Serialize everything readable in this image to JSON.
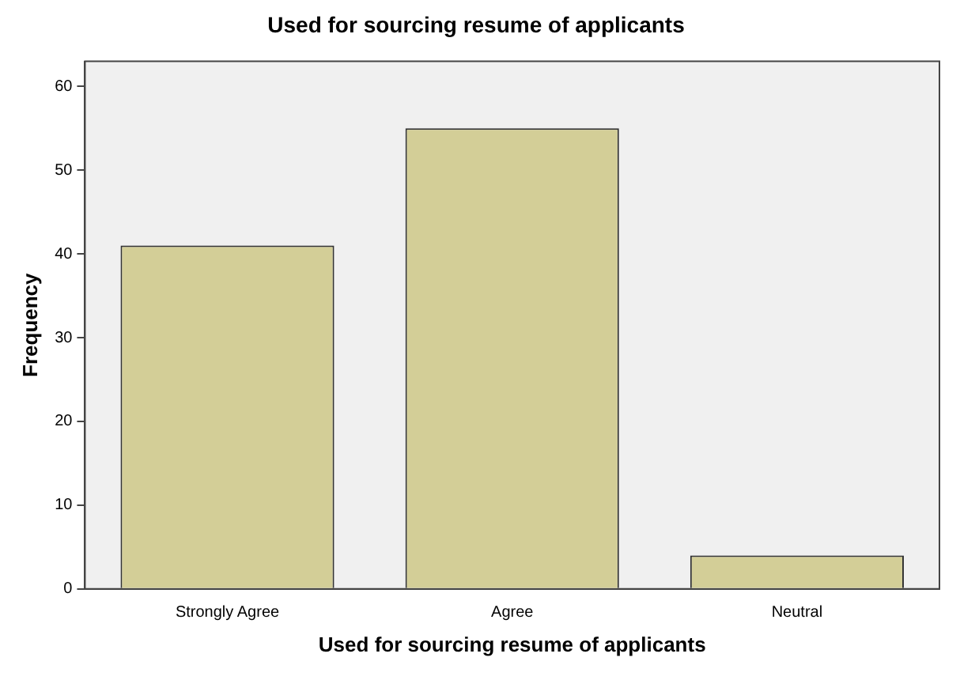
{
  "chart_data": {
    "type": "bar",
    "title": "Used for sourcing resume of applicants",
    "xlabel": "Used for sourcing resume of applicants",
    "ylabel": "Frequency",
    "categories": [
      "Strongly Agree",
      "Agree",
      "Neutral"
    ],
    "values": [
      41,
      55,
      4
    ],
    "color": "#d3ce97",
    "ylim": [
      0,
      63
    ],
    "yticks": [
      0,
      10,
      20,
      30,
      40,
      50,
      60
    ],
    "grid": false,
    "legend": false
  }
}
